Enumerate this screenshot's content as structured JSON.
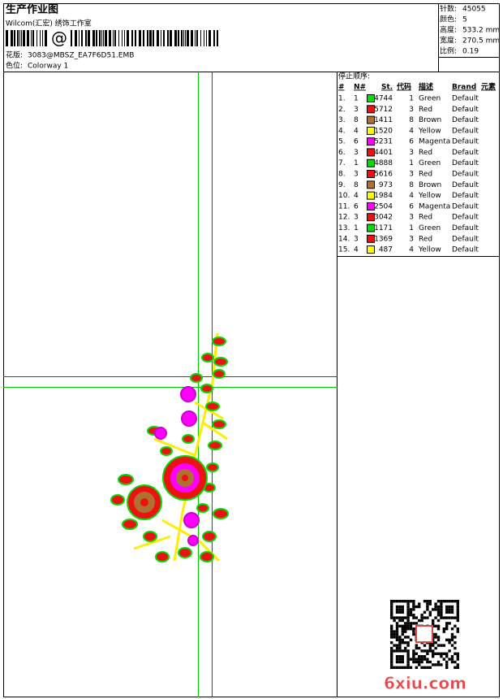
{
  "header": {
    "title": "生产作业图",
    "subtitle": "Wilcom(汇宏) 绣饰工作室",
    "barcode_text": "@"
  },
  "file": {
    "label": "花版:",
    "value": "3083@MBSZ_EA7F6D51.EMB"
  },
  "colorway": {
    "label": "色位:",
    "value": "Colorway 1"
  },
  "stats": [
    [
      "针数:",
      "45055"
    ],
    [
      "颜色:",
      "5"
    ],
    [
      "高度:",
      "533.2 mm"
    ],
    [
      "宽度:",
      "270.5 mm"
    ],
    [
      "比例:",
      "0.19"
    ]
  ],
  "stop_sequence": {
    "title": "停止顺序:",
    "columns": [
      "#",
      "N#",
      "St.",
      "代码",
      "描述",
      "Brand",
      "元素"
    ],
    "rows": [
      [
        "1.",
        "1",
        "#00dd00",
        "4744",
        "1",
        "Green",
        "Default"
      ],
      [
        "2.",
        "3",
        "#ee1111",
        "5712",
        "3",
        "Red",
        "Default"
      ],
      [
        "3.",
        "8",
        "#b07030",
        "1411",
        "8",
        "Brown",
        "Default"
      ],
      [
        "4.",
        "4",
        "#ffff00",
        "1520",
        "4",
        "Yellow",
        "Default"
      ],
      [
        "5.",
        "6",
        "#ff00ff",
        "5231",
        "6",
        "Magenta",
        "Default"
      ],
      [
        "6.",
        "3",
        "#ee1111",
        "4401",
        "3",
        "Red",
        "Default"
      ],
      [
        "7.",
        "1",
        "#00dd00",
        "4888",
        "1",
        "Green",
        "Default"
      ],
      [
        "8.",
        "3",
        "#ee1111",
        "5616",
        "3",
        "Red",
        "Default"
      ],
      [
        "9.",
        "8",
        "#b07030",
        "973",
        "8",
        "Brown",
        "Default"
      ],
      [
        "10.",
        "4",
        "#ffff00",
        "1984",
        "4",
        "Yellow",
        "Default"
      ],
      [
        "11.",
        "6",
        "#ff00ff",
        "2504",
        "6",
        "Magenta",
        "Default"
      ],
      [
        "12.",
        "3",
        "#ee1111",
        "3042",
        "3",
        "Red",
        "Default"
      ],
      [
        "13.",
        "1",
        "#00dd00",
        "1171",
        "1",
        "Green",
        "Default"
      ],
      [
        "14.",
        "3",
        "#ee1111",
        "1369",
        "3",
        "Red",
        "Default"
      ],
      [
        "15.",
        "4",
        "#ffff00",
        "487",
        "4",
        "Yellow",
        "Default"
      ]
    ]
  },
  "watermark": "6xiu.com"
}
